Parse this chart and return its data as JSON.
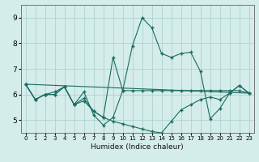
{
  "xlabel": "Humidex (Indice chaleur)",
  "bg_color": "#d4ecea",
  "grid_color": "#aed4d0",
  "line_color": "#1a6b60",
  "xlim": [
    -0.5,
    23.5
  ],
  "ylim": [
    4.5,
    9.5
  ],
  "xticks": [
    0,
    1,
    2,
    3,
    4,
    5,
    6,
    7,
    8,
    9,
    10,
    11,
    12,
    13,
    14,
    15,
    16,
    17,
    18,
    19,
    20,
    21,
    22,
    23
  ],
  "yticks": [
    5,
    6,
    7,
    8,
    9
  ],
  "line1_x": [
    0,
    1,
    2,
    3,
    4,
    5,
    6,
    7,
    8,
    9,
    10,
    11,
    12,
    13,
    14,
    15,
    16,
    17,
    18,
    19,
    20,
    21,
    22,
    23
  ],
  "line1_y": [
    6.4,
    5.8,
    6.0,
    6.0,
    6.3,
    5.6,
    6.1,
    5.2,
    4.8,
    5.1,
    6.15,
    7.9,
    9.0,
    8.6,
    7.6,
    7.45,
    7.6,
    7.65,
    6.9,
    5.05,
    5.45,
    6.05,
    6.35,
    6.05
  ],
  "line2_x": [
    0,
    1,
    2,
    3,
    4,
    5,
    6,
    7,
    8,
    9,
    10,
    11,
    12,
    13,
    14,
    15,
    16,
    17,
    18,
    19,
    20,
    21,
    22,
    23
  ],
  "line2_y": [
    6.4,
    5.8,
    6.0,
    6.1,
    6.3,
    5.6,
    5.85,
    5.35,
    5.1,
    7.45,
    6.15,
    6.15,
    6.15,
    6.15,
    6.15,
    6.15,
    6.15,
    6.15,
    6.15,
    6.15,
    6.15,
    6.15,
    6.15,
    6.05
  ],
  "line3_x": [
    0,
    1,
    2,
    3,
    4,
    5,
    6,
    7,
    8,
    9,
    10,
    11,
    12,
    13,
    14,
    15,
    16,
    17,
    18,
    19,
    20,
    21,
    22,
    23
  ],
  "line3_y": [
    6.4,
    5.8,
    6.0,
    6.0,
    6.3,
    5.6,
    5.75,
    5.35,
    5.1,
    4.95,
    4.85,
    4.75,
    4.65,
    4.55,
    4.5,
    4.95,
    5.4,
    5.6,
    5.8,
    5.9,
    5.8,
    6.05,
    6.35,
    6.05
  ],
  "line4_x": [
    0,
    23
  ],
  "line4_y": [
    6.4,
    6.05
  ]
}
